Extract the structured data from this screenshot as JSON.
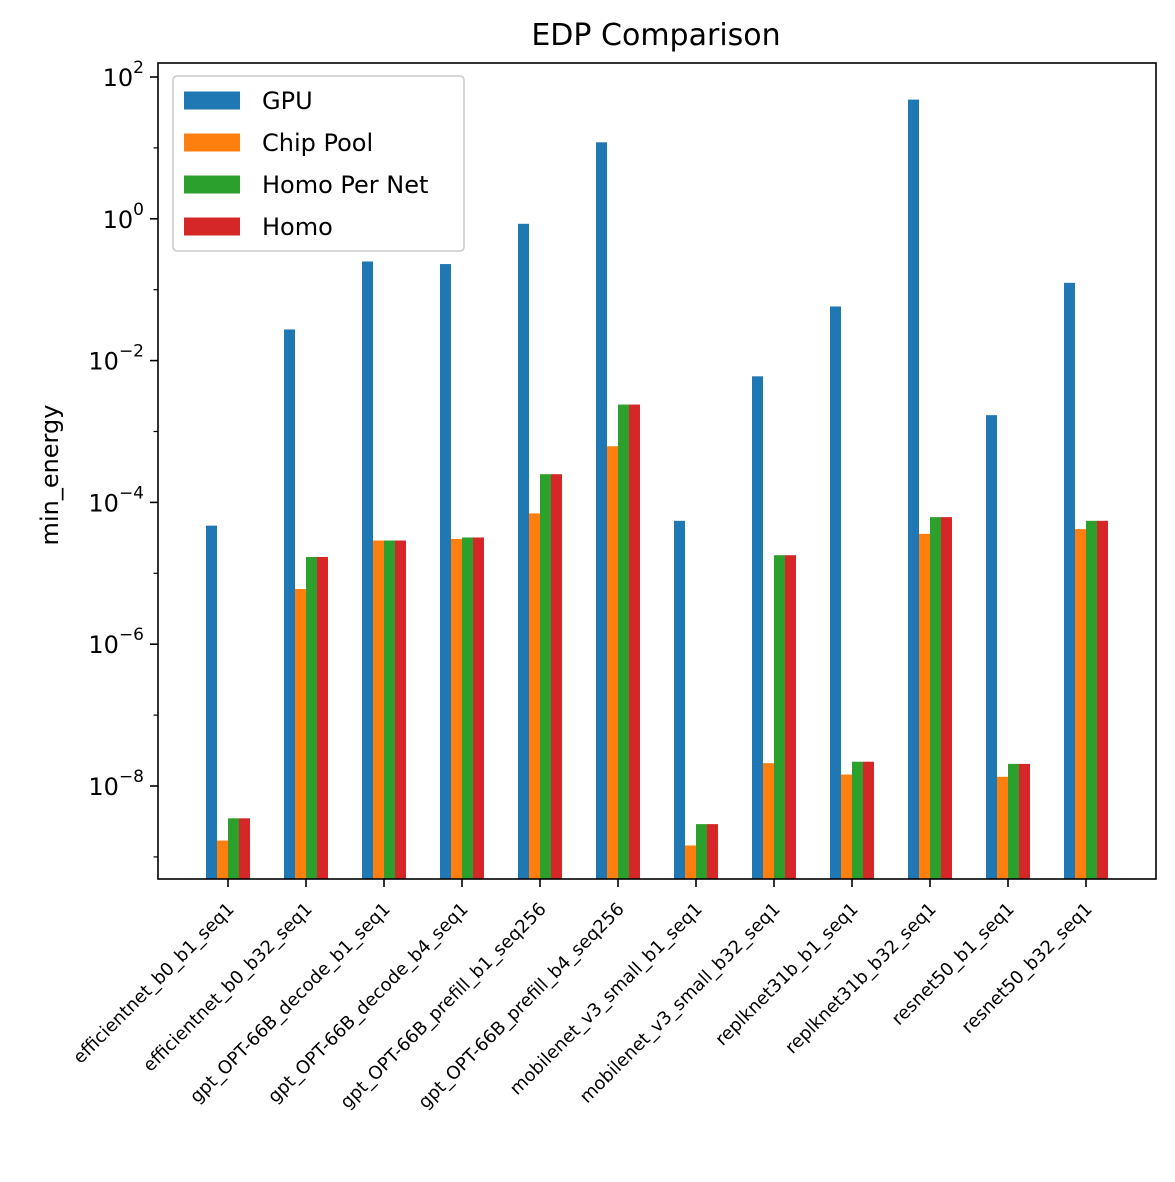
{
  "chart_data": {
    "type": "bar",
    "title": "EDP Comparison",
    "xlabel": "",
    "ylabel": "min_energy",
    "y_scale": "log",
    "ylim": [
      3.5e-10,
      150
    ],
    "y_ticks": [
      {
        "exp": "2",
        "value": 100
      },
      {
        "exp": "0",
        "value": 1
      },
      {
        "exp": "−2",
        "value": 0.01
      },
      {
        "exp": "−4",
        "value": 0.0001
      },
      {
        "exp": "−6",
        "value": 1e-06
      },
      {
        "exp": "−8",
        "value": 1e-08
      }
    ],
    "grid": false,
    "legend_position": "upper left",
    "categories": [
      "efficientnet_b0_b1_seq1",
      "efficientnet_b0_b32_seq1",
      "gpt_OPT-66B_decode_b1_seq1",
      "gpt_OPT-66B_decode_b4_seq1",
      "gpt_OPT-66B_prefill_b1_seq256",
      "gpt_OPT-66B_prefill_b4_seq256",
      "mobilenet_v3_small_b1_seq1",
      "mobilenet_v3_small_b32_seq1",
      "replknet31b_b1_seq1",
      "replknet31b_b32_seq1",
      "resnet50_b1_seq1",
      "resnet50_b32_seq1"
    ],
    "series": [
      {
        "name": "GPU",
        "color": "#1f77b4",
        "values": [
          4.7e-05,
          0.0275,
          0.25,
          0.23,
          0.85,
          12,
          5.5e-05,
          0.006,
          0.058,
          48,
          0.0017,
          0.125
        ]
      },
      {
        "name": "Chip Pool",
        "color": "#ff7f0e",
        "values": [
          1.7e-09,
          6e-06,
          2.9e-05,
          3.05e-05,
          7e-05,
          0.00062,
          1.45e-09,
          2.1e-08,
          1.45e-08,
          3.6e-05,
          1.35e-08,
          4.2e-05
        ]
      },
      {
        "name": "Homo Per Net",
        "color": "#2ca02c",
        "values": [
          3.5e-09,
          1.7e-05,
          2.9e-05,
          3.2e-05,
          0.00025,
          0.0024,
          2.9e-09,
          1.8e-05,
          2.2e-08,
          6.2e-05,
          2.05e-08,
          5.5e-05
        ]
      },
      {
        "name": "Homo",
        "color": "#d62728",
        "values": [
          3.5e-09,
          1.7e-05,
          2.9e-05,
          3.2e-05,
          0.00025,
          0.0024,
          2.9e-09,
          1.8e-05,
          2.2e-08,
          6.2e-05,
          2.05e-08,
          5.5e-05
        ]
      }
    ]
  }
}
